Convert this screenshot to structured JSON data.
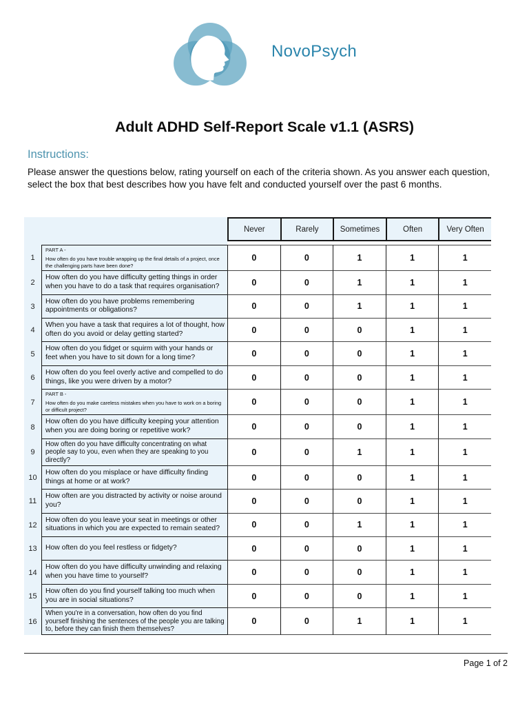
{
  "logo": {
    "brand": "NovoPsych",
    "icon": "head-profile-logo"
  },
  "title": "Adult ADHD Self-Report Scale v1.1 (ASRS)",
  "instructions": {
    "heading": "Instructions:",
    "body": "Please answer the questions below, rating yourself on each of the criteria shown.  As you answer each question, select the box that best describes how you have felt and conducted yourself over the past 6 months."
  },
  "table": {
    "columns": [
      "Never",
      "Rarely",
      "Sometimes",
      "Often",
      "Very Often"
    ],
    "rows": [
      {
        "num": "1",
        "part": "PART A -",
        "question": "How often do you have trouble wrapping up the final details of a project, once the challenging parts have been done?",
        "values": [
          "0",
          "0",
          "1",
          "1",
          "1"
        ]
      },
      {
        "num": "2",
        "question": "How often do you have difficulty getting things in order when you have to do a task that requires organisation?",
        "values": [
          "0",
          "0",
          "1",
          "1",
          "1"
        ]
      },
      {
        "num": "3",
        "question": "How often do you have problems remembering appointments or obligations?",
        "values": [
          "0",
          "0",
          "1",
          "1",
          "1"
        ]
      },
      {
        "num": "4",
        "question": "When you have a task that requires a lot of thought, how often do you avoid or delay getting started?",
        "values": [
          "0",
          "0",
          "0",
          "1",
          "1"
        ]
      },
      {
        "num": "5",
        "question": "How often do you fidget or squirm with your hands or feet when you have to sit down for a long time?",
        "values": [
          "0",
          "0",
          "0",
          "1",
          "1"
        ]
      },
      {
        "num": "6",
        "question": "How often do you feel overly active and compelled to do things, like you were driven by a motor?",
        "values": [
          "0",
          "0",
          "0",
          "1",
          "1"
        ]
      },
      {
        "num": "7",
        "part": "PART B -",
        "question": "How often do you make careless mistakes when you have to work on a boring or difficult project?",
        "values": [
          "0",
          "0",
          "0",
          "1",
          "1"
        ]
      },
      {
        "num": "8",
        "question": "How often do you have difficulty keeping your attention when you are doing boring or repetitive work?",
        "values": [
          "0",
          "0",
          "0",
          "1",
          "1"
        ]
      },
      {
        "num": "9",
        "question": "How often do you have difficulty concentrating on what people say to you, even when they are speaking to you directly?",
        "values": [
          "0",
          "0",
          "1",
          "1",
          "1"
        ]
      },
      {
        "num": "10",
        "question": "How often do you misplace or have difficulty finding things at home or at work?",
        "values": [
          "0",
          "0",
          "0",
          "1",
          "1"
        ]
      },
      {
        "num": "11",
        "question": "How often are you distracted by activity or noise around you?",
        "values": [
          "0",
          "0",
          "0",
          "1",
          "1"
        ]
      },
      {
        "num": "12",
        "question": "How often do you leave your seat in meetings or other situations in which you are expected to remain seated?",
        "values": [
          "0",
          "0",
          "1",
          "1",
          "1"
        ]
      },
      {
        "num": "13",
        "question": "How often do you feel restless or fidgety?",
        "values": [
          "0",
          "0",
          "0",
          "1",
          "1"
        ]
      },
      {
        "num": "14",
        "question": "How often do you have difficulty unwinding and relaxing when you have time to yourself?",
        "values": [
          "0",
          "0",
          "0",
          "1",
          "1"
        ]
      },
      {
        "num": "15",
        "question": "How often do you find yourself talking too much when you are in social situations?",
        "values": [
          "0",
          "0",
          "0",
          "1",
          "1"
        ]
      },
      {
        "num": "16",
        "question": "When you're in a conversation, how often do you find yourself finishing the sentences of the people you are talking to, before they can finish them themselves?",
        "values": [
          "0",
          "0",
          "1",
          "1",
          "1"
        ]
      }
    ]
  },
  "footer": {
    "page": "Page 1 of 2"
  },
  "colors": {
    "brand_teal": "#2b85ac",
    "accent_teal": "#4d93ae",
    "panel_blue": "#e9f3fa",
    "logo_teal": "#5aa2bf"
  }
}
